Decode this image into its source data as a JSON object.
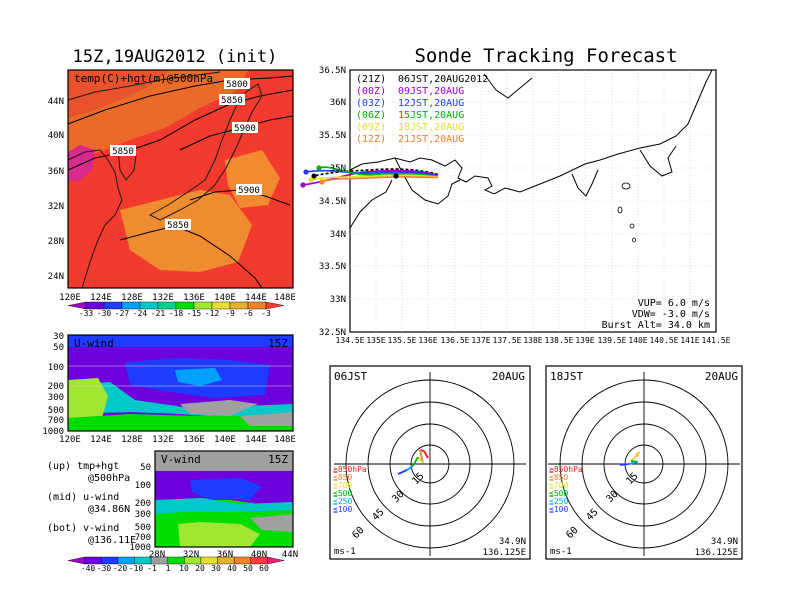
{
  "left_title": "15Z,19AUG2012 (init)",
  "right_title": "Sonde Tracking Forecast",
  "top_map": {
    "label": "temp(C)+hgt(m)@500hPa",
    "lat_ticks": [
      "44N",
      "40N",
      "36N",
      "32N",
      "28N",
      "24N"
    ],
    "lon_ticks": [
      "120E",
      "124E",
      "128E",
      "132E",
      "136E",
      "140E",
      "144E",
      "148E"
    ],
    "contours": [
      "5800",
      "5850",
      "5900",
      "5850",
      "5900",
      "5850"
    ],
    "colorbar": {
      "labels": [
        "-33",
        "-30",
        "-27",
        "-24",
        "-21",
        "-18",
        "-15",
        "-12",
        "-9",
        "-6",
        "-3"
      ],
      "colors": [
        "#a000c8",
        "#6e00dc",
        "#1e3cff",
        "#00a0ff",
        "#00c8c8",
        "#00d28c",
        "#00dc00",
        "#a0e632",
        "#e6dc32",
        "#e6af2d",
        "#f08228",
        "#fa3c3c"
      ]
    }
  },
  "uwind": {
    "label": "U-wind",
    "time": "15Z",
    "y_ticks": [
      "30",
      "50",
      "100",
      "200",
      "300",
      "500",
      "700",
      "1000"
    ],
    "x_ticks": [
      "120E",
      "124E",
      "128E",
      "132E",
      "136E",
      "140E",
      "144E",
      "148E"
    ]
  },
  "vwind": {
    "label": "V-wind",
    "time": "15Z",
    "y_ticks": [
      "50",
      "100",
      "200",
      "300",
      "500",
      "700",
      "1000"
    ],
    "x_ticks": [
      "28N",
      "32N",
      "36N",
      "40N",
      "44N"
    ]
  },
  "legend_notes": {
    "up": "(up) tmp+hgt",
    "up_sub": "@500hPa",
    "mid": "(mid) u-wind",
    "mid_sub": "@34.86N",
    "bot": "(bot) v-wind",
    "bot_sub": "@136.11E"
  },
  "wind_colorbar": {
    "labels": [
      "-40",
      "-30",
      "-20",
      "-10",
      "-1",
      "1",
      "10",
      "20",
      "30",
      "40",
      "50",
      "60"
    ],
    "colors": [
      "#a000c8",
      "#6e00dc",
      "#1e3cff",
      "#00a0ff",
      "#00c8c8",
      "#a0a0a0",
      "#00dc00",
      "#a0e632",
      "#e6dc32",
      "#e6af2d",
      "#f08228",
      "#fa3c3c",
      "#f01e78"
    ]
  },
  "track_map": {
    "lat_ticks": [
      "36.5N",
      "36N",
      "35.5N",
      "35N",
      "34.5N",
      "34N",
      "33.5N",
      "33N",
      "32.5N"
    ],
    "lon_ticks": [
      "134.5E",
      "135E",
      "135.5E",
      "136E",
      "136.5E",
      "137E",
      "137.5E",
      "138E",
      "138.5E",
      "139E",
      "139.5E",
      "140E",
      "140.5E",
      "141E",
      "141.5E"
    ],
    "launches": [
      {
        "code": "(21Z)",
        "time": "06JST,20AUG2012",
        "color": "#000000"
      },
      {
        "code": "(00Z)",
        "time": "09JST,20AUG",
        "color": "#a000c8"
      },
      {
        "code": "(03Z)",
        "time": "12JST,20AUG",
        "color": "#1e3cff"
      },
      {
        "code": "(06Z)",
        "time": "15JST,20AUG",
        "color": "#00b400"
      },
      {
        "code": "(09Z)",
        "time": "18JST,20AUG",
        "color": "#e6dc32"
      },
      {
        "code": "(12Z)",
        "time": "21JST,20AUG",
        "color": "#f08228"
      }
    ],
    "params": {
      "vup": "VUP=  6.0 m/s",
      "vdw": "VDW= -3.0 m/s",
      "burst": "Burst Alt= 34.0 km"
    }
  },
  "hodo_left": {
    "time": "06JST",
    "date": "20AUG",
    "rings": [
      "15",
      "30",
      "45",
      "60"
    ],
    "levels": [
      "≧850hPa",
      "≦850",
      "≦700",
      "≦500",
      "≦250",
      "≦100"
    ],
    "unit": "ms-1",
    "lat": "34.9N",
    "lon": "136.125E"
  },
  "hodo_right": {
    "time": "18JST",
    "date": "20AUG",
    "rings": [
      "15",
      "30",
      "45",
      "60"
    ],
    "levels": [
      "≧850hPa",
      "≦850",
      "≦700",
      "≦500",
      "≦250",
      "≦100"
    ],
    "unit": "ms-1",
    "lat": "34.9N",
    "lon": "136.125E"
  },
  "level_colors": [
    "#e61e1e",
    "#f08228",
    "#e6dc32",
    "#00b400",
    "#00a0ff",
    "#1e3cff"
  ]
}
